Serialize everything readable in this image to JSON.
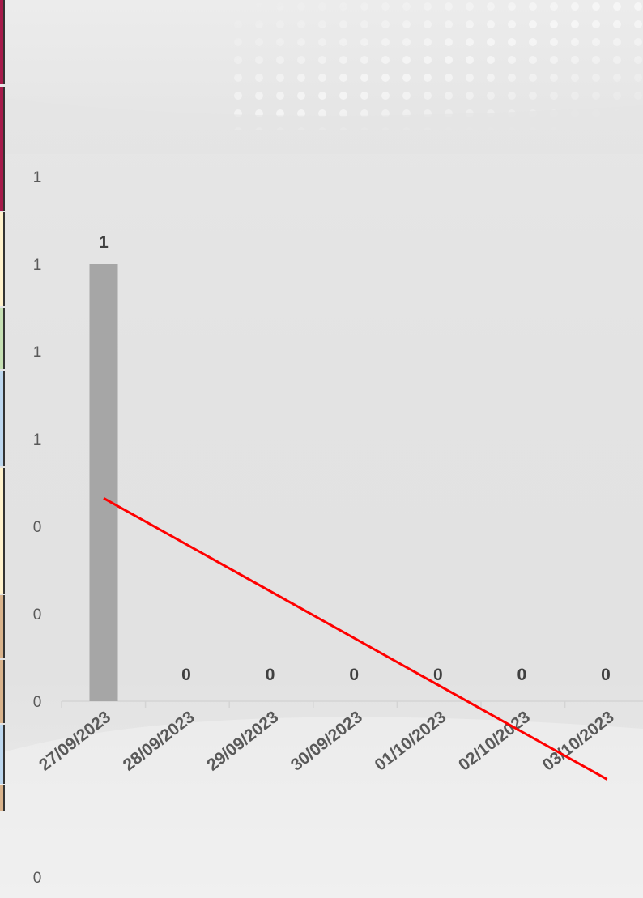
{
  "chart_data": {
    "type": "bar",
    "categories": [
      "27/09/2023",
      "28/09/2023",
      "29/09/2023",
      "30/09/2023",
      "01/10/2023",
      "02/10/2023",
      "03/10/2023"
    ],
    "series": [
      {
        "values": [
          1,
          0,
          0,
          0,
          0,
          0,
          0
        ],
        "color": "#a6a6a6"
      }
    ],
    "trendline": {
      "type": "linear",
      "color": "#ff0000"
    },
    "data_labels": [
      "1",
      "0",
      "0",
      "0",
      "0",
      "0",
      "0"
    ],
    "y_tick_labels": [
      "0",
      "0",
      "0",
      "1",
      "1",
      "1",
      "1"
    ],
    "extra_tick_label": "0",
    "ylim": [
      0,
      1.2
    ],
    "title": "",
    "xlabel": "",
    "ylabel": "",
    "grid": false,
    "legend": "none"
  },
  "colors": {
    "strip": [
      "#a61b4a",
      "#a61b4a",
      "#fff2cc",
      "#c6e0b4",
      "#bdd7ee",
      "#fff2cc",
      "#d9b38c",
      "#d9b38c",
      "#bdd7ee",
      "#d9b38c"
    ]
  }
}
